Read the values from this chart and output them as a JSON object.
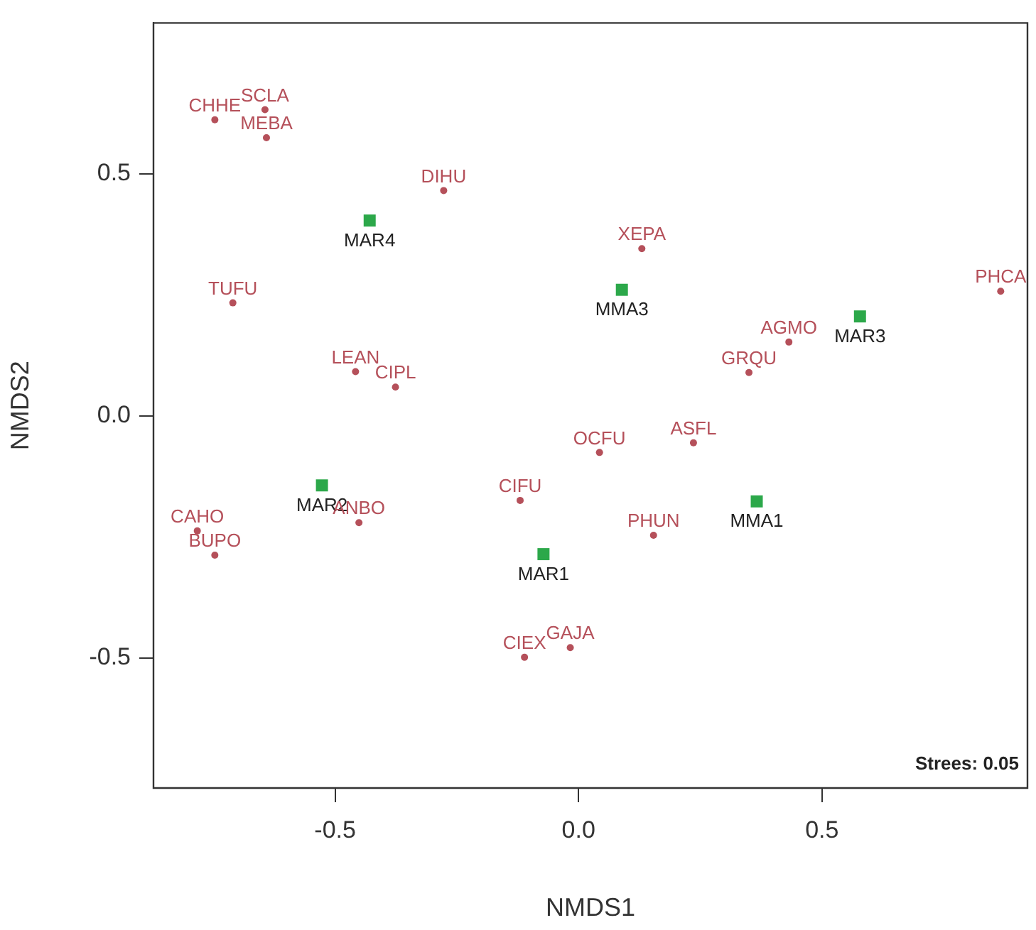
{
  "chart_data": {
    "type": "scatter",
    "xlabel": "NMDS1",
    "ylabel": "NMDS2",
    "xlim": [
      -0.873,
      0.922
    ],
    "ylim": [
      -0.769,
      0.811
    ],
    "xticks": [
      -0.5,
      {
        "value": 0,
        "label": "0.0"
      },
      0.5
    ],
    "yticks": [
      -0.5,
      {
        "value": 0,
        "label": "0.0"
      },
      0.5
    ],
    "grid": false,
    "legend": false,
    "annotations": [
      "Strees: 0.05"
    ],
    "series": [
      {
        "color": "#2ca84a",
        "marker": "square",
        "x": [
          -0.429,
          0.089,
          0.578,
          -0.527,
          0.366,
          -0.072
        ],
        "values": [
          0.403,
          0.26,
          0.205,
          -0.144,
          -0.177,
          -0.286
        ],
        "value_labels": [
          "MAR4",
          "MMA3",
          "MAR3",
          "MAR2",
          "MMA1",
          "MAR1"
        ]
      },
      {
        "color": "#b5505a",
        "marker": "circle",
        "x": [
          -0.747,
          -0.644,
          -0.641,
          -0.277,
          -0.71,
          -0.458,
          -0.376,
          0.13,
          0.867,
          0.432,
          0.35,
          -0.783,
          -0.747,
          -0.451,
          -0.12,
          -0.111,
          -0.017,
          0.043,
          0.236,
          0.154
        ],
        "values": [
          0.611,
          0.632,
          0.574,
          0.465,
          0.233,
          0.091,
          0.059,
          0.345,
          0.257,
          0.152,
          0.089,
          -0.238,
          -0.288,
          -0.221,
          -0.175,
          -0.499,
          -0.479,
          -0.076,
          -0.056,
          -0.247
        ],
        "value_labels": [
          "CHHE",
          "SCLA",
          "MEBA",
          "DIHU",
          "TUFU",
          "LEAN",
          "CIPL",
          "XEPA",
          "PHCA",
          "AGMO",
          "GRQU",
          "CAHO",
          "BUPO",
          "ANBO",
          "CIFU",
          "CIEX",
          "GAJA",
          "OCFU",
          "ASFL",
          "PHUN"
        ]
      }
    ]
  }
}
